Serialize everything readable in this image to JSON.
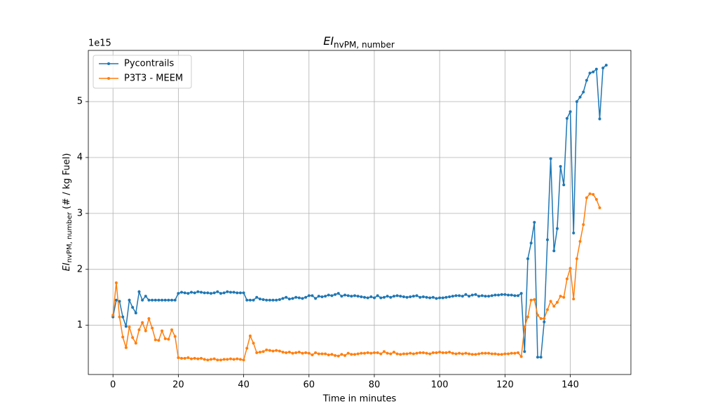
{
  "chart_data": {
    "type": "line",
    "title": {
      "main": "EI",
      "sub": "nvPM, number"
    },
    "xlabel": "Time in minutes",
    "ylabel": {
      "main": "EI",
      "sub": "nvPM, number",
      "rest": " (# / kg Fuel)"
    },
    "y_offset_label": "1e15",
    "x": [
      0,
      1,
      2,
      3,
      4,
      5,
      6,
      7,
      8,
      9,
      10,
      11,
      12,
      13,
      14,
      15,
      16,
      17,
      18,
      19,
      20,
      21,
      22,
      23,
      24,
      25,
      26,
      27,
      28,
      29,
      30,
      31,
      32,
      33,
      34,
      35,
      36,
      37,
      38,
      39,
      40,
      41,
      42,
      43,
      44,
      45,
      46,
      47,
      48,
      49,
      50,
      51,
      52,
      53,
      54,
      55,
      56,
      57,
      58,
      59,
      60,
      61,
      62,
      63,
      64,
      65,
      66,
      67,
      68,
      69,
      70,
      71,
      72,
      73,
      74,
      75,
      76,
      77,
      78,
      79,
      80,
      81,
      82,
      83,
      84,
      85,
      86,
      87,
      88,
      89,
      90,
      91,
      92,
      93,
      94,
      95,
      96,
      97,
      98,
      99,
      100,
      101,
      102,
      103,
      104,
      105,
      106,
      107,
      108,
      109,
      110,
      111,
      112,
      113,
      114,
      115,
      116,
      117,
      118,
      119,
      120,
      121,
      122,
      123,
      124,
      125,
      126,
      127,
      128,
      129,
      130,
      131,
      132,
      133,
      134,
      135,
      136,
      137,
      138,
      139,
      140,
      141,
      142,
      143,
      144,
      145,
      146,
      147,
      148,
      149,
      150,
      151
    ],
    "series": [
      {
        "name": "Pycontrails",
        "color": "#1f77b4",
        "values": [
          1.15,
          1.45,
          1.43,
          1.15,
          0.98,
          1.45,
          1.32,
          1.22,
          1.6,
          1.45,
          1.52,
          1.45,
          1.45,
          1.45,
          1.45,
          1.45,
          1.45,
          1.45,
          1.45,
          1.45,
          1.57,
          1.59,
          1.58,
          1.57,
          1.59,
          1.58,
          1.6,
          1.59,
          1.58,
          1.58,
          1.57,
          1.58,
          1.6,
          1.57,
          1.58,
          1.6,
          1.59,
          1.59,
          1.58,
          1.58,
          1.58,
          1.45,
          1.45,
          1.45,
          1.5,
          1.47,
          1.46,
          1.45,
          1.45,
          1.45,
          1.45,
          1.46,
          1.48,
          1.5,
          1.47,
          1.48,
          1.5,
          1.49,
          1.48,
          1.5,
          1.53,
          1.53,
          1.48,
          1.52,
          1.51,
          1.52,
          1.54,
          1.53,
          1.55,
          1.57,
          1.52,
          1.54,
          1.53,
          1.52,
          1.53,
          1.52,
          1.51,
          1.5,
          1.49,
          1.51,
          1.49,
          1.53,
          1.49,
          1.5,
          1.52,
          1.5,
          1.52,
          1.53,
          1.52,
          1.51,
          1.5,
          1.51,
          1.52,
          1.53,
          1.5,
          1.51,
          1.5,
          1.49,
          1.5,
          1.48,
          1.49,
          1.49,
          1.5,
          1.51,
          1.52,
          1.53,
          1.53,
          1.52,
          1.55,
          1.52,
          1.54,
          1.55,
          1.52,
          1.53,
          1.52,
          1.52,
          1.53,
          1.54,
          1.54,
          1.55,
          1.55,
          1.54,
          1.54,
          1.53,
          1.53,
          1.57,
          0.53,
          2.19,
          2.47,
          2.84,
          0.43,
          0.43,
          1.06,
          2.53,
          3.98,
          2.33,
          2.73,
          3.84,
          3.51,
          4.7,
          4.82,
          2.65,
          5.0,
          5.08,
          5.17,
          5.38,
          5.51,
          5.53,
          5.58,
          4.69,
          5.6,
          5.65
        ]
      },
      {
        "name": "P3T3 - MEEM",
        "color": "#ff7f0e",
        "values": [
          1.18,
          1.76,
          1.15,
          0.79,
          0.6,
          0.97,
          0.78,
          0.68,
          0.92,
          1.05,
          0.9,
          1.12,
          0.95,
          0.74,
          0.73,
          0.9,
          0.76,
          0.75,
          0.92,
          0.8,
          0.42,
          0.41,
          0.41,
          0.42,
          0.4,
          0.41,
          0.4,
          0.41,
          0.39,
          0.38,
          0.39,
          0.4,
          0.38,
          0.38,
          0.39,
          0.39,
          0.4,
          0.39,
          0.4,
          0.39,
          0.38,
          0.59,
          0.81,
          0.68,
          0.51,
          0.52,
          0.53,
          0.56,
          0.55,
          0.54,
          0.55,
          0.54,
          0.52,
          0.51,
          0.52,
          0.5,
          0.51,
          0.52,
          0.5,
          0.51,
          0.5,
          0.47,
          0.51,
          0.49,
          0.49,
          0.49,
          0.47,
          0.48,
          0.46,
          0.45,
          0.48,
          0.46,
          0.5,
          0.48,
          0.48,
          0.49,
          0.5,
          0.5,
          0.51,
          0.5,
          0.51,
          0.51,
          0.49,
          0.53,
          0.5,
          0.49,
          0.52,
          0.49,
          0.48,
          0.49,
          0.49,
          0.5,
          0.49,
          0.5,
          0.51,
          0.51,
          0.5,
          0.49,
          0.51,
          0.51,
          0.52,
          0.51,
          0.51,
          0.52,
          0.5,
          0.49,
          0.5,
          0.49,
          0.5,
          0.49,
          0.48,
          0.48,
          0.49,
          0.5,
          0.5,
          0.5,
          0.49,
          0.49,
          0.48,
          0.48,
          0.49,
          0.49,
          0.5,
          0.5,
          0.51,
          0.44,
          0.97,
          1.15,
          1.45,
          1.46,
          1.18,
          1.12,
          1.12,
          1.28,
          1.43,
          1.34,
          1.41,
          1.52,
          1.5,
          1.83,
          2.02,
          1.47,
          2.19,
          2.5,
          2.8,
          3.28,
          3.35,
          3.34,
          3.25,
          3.1,
          null,
          null
        ]
      }
    ],
    "xlim": [
      -7.55,
      158.55
    ],
    "ylim": [
      0.12,
      5.915
    ],
    "xticks": [
      0,
      20,
      40,
      60,
      80,
      100,
      120,
      140
    ],
    "yticks": [
      1,
      2,
      3,
      4,
      5
    ],
    "grid": true,
    "legend": "upper-left"
  }
}
